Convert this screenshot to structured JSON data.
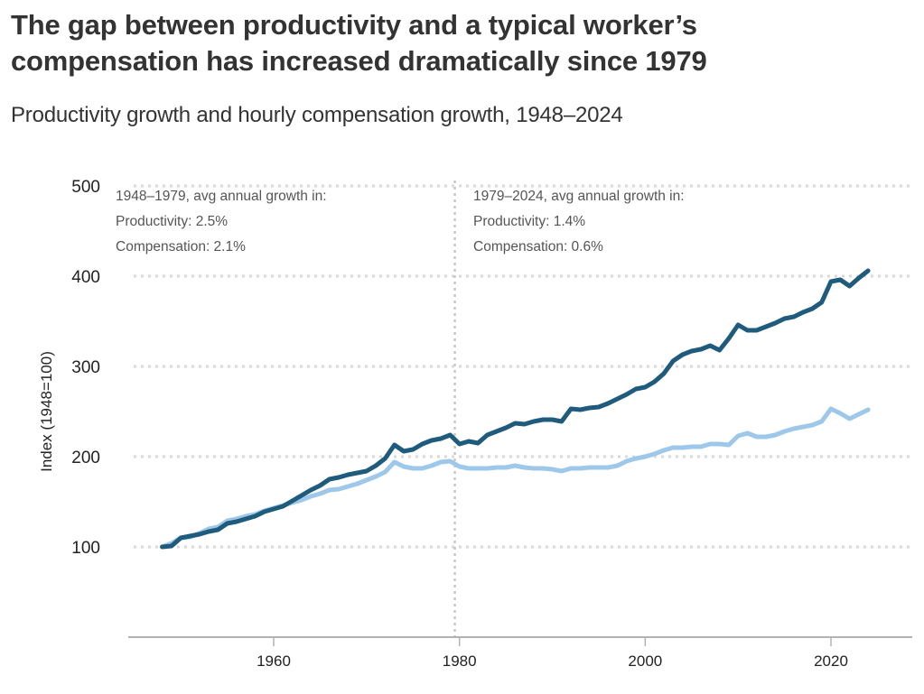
{
  "header": {
    "title_line1": "The gap between productivity and a typical worker’s",
    "title_line2": "compensation has increased dramatically since 1979",
    "subtitle": "Productivity growth and hourly compensation growth, 1948–2024"
  },
  "colors": {
    "productivity": "#1f5b7c",
    "compensation": "#9dc8ea",
    "grid": "#d9d9d9",
    "axis": "#b3b3b3",
    "divider": "#c8c8c8"
  },
  "chart_data": {
    "type": "line",
    "title": "The gap between productivity and a typical worker’s compensation has increased dramatically since 1979",
    "subtitle": "Productivity growth and hourly compensation growth, 1948–2024",
    "xlabel": "",
    "ylabel": "Index (1948=100)",
    "xlim": [
      1944.5,
      2028.5
    ],
    "ylim": [
      0,
      500
    ],
    "x_ticks": [
      1960,
      1980,
      2000,
      2020
    ],
    "x_tick_labels": [
      "1960",
      "1980",
      "2000",
      "2020"
    ],
    "y_ticks": [
      100,
      200,
      300,
      400,
      500
    ],
    "y_tick_labels": [
      "100",
      "200",
      "300",
      "400",
      "500"
    ],
    "grid": "horizontal dotted",
    "legend": "none",
    "divider_year": 1979.5,
    "annotations": {
      "left": {
        "heading": "1948–1979, avg annual growth in:",
        "productivity": "Productivity: 2.5%",
        "compensation": "Compensation: 2.1%"
      },
      "right": {
        "heading": "1979–2024, avg annual growth in:",
        "productivity": "Productivity: 1.4%",
        "compensation": "Compensation: 0.6%"
      }
    },
    "series": [
      {
        "name": "Productivity",
        "x": [
          1948,
          1949,
          1950,
          1951,
          1952,
          1953,
          1954,
          1955,
          1956,
          1957,
          1958,
          1959,
          1960,
          1961,
          1962,
          1963,
          1964,
          1965,
          1966,
          1967,
          1968,
          1969,
          1970,
          1971,
          1972,
          1973,
          1974,
          1975,
          1976,
          1977,
          1978,
          1979,
          1980,
          1981,
          1982,
          1983,
          1984,
          1985,
          1986,
          1987,
          1988,
          1989,
          1990,
          1991,
          1992,
          1993,
          1994,
          1995,
          1996,
          1997,
          1998,
          1999,
          2000,
          2001,
          2002,
          2003,
          2004,
          2005,
          2006,
          2007,
          2008,
          2009,
          2010,
          2011,
          2012,
          2013,
          2014,
          2015,
          2016,
          2017,
          2018,
          2019,
          2020,
          2021,
          2022,
          2023,
          2024
        ],
        "values": [
          100,
          101,
          110,
          112,
          114,
          117,
          119,
          126,
          128,
          131,
          134,
          139,
          142,
          145,
          151,
          157,
          163,
          168,
          175,
          177,
          180,
          182,
          184,
          190,
          198,
          213,
          206,
          208,
          214,
          218,
          220,
          224,
          214,
          217,
          215,
          224,
          228,
          232,
          237,
          236,
          239,
          241,
          241,
          239,
          253,
          252,
          254,
          255,
          259,
          264,
          269,
          275,
          277,
          283,
          292,
          306,
          313,
          317,
          319,
          323,
          318,
          331,
          346,
          340,
          340,
          344,
          348,
          353,
          355,
          360,
          364,
          371,
          394,
          396,
          389,
          398,
          406
        ]
      },
      {
        "name": "Compensation",
        "x": [
          1948,
          1949,
          1950,
          1951,
          1952,
          1953,
          1954,
          1955,
          1956,
          1957,
          1958,
          1959,
          1960,
          1961,
          1962,
          1963,
          1964,
          1965,
          1966,
          1967,
          1968,
          1969,
          1970,
          1971,
          1972,
          1973,
          1974,
          1975,
          1976,
          1977,
          1978,
          1979,
          1980,
          1981,
          1982,
          1983,
          1984,
          1985,
          1986,
          1987,
          1988,
          1989,
          1990,
          1991,
          1992,
          1993,
          1994,
          1995,
          1996,
          1997,
          1998,
          1999,
          2000,
          2001,
          2002,
          2003,
          2004,
          2005,
          2006,
          2007,
          2008,
          2009,
          2010,
          2011,
          2012,
          2013,
          2014,
          2015,
          2016,
          2017,
          2018,
          2019,
          2020,
          2021,
          2022,
          2023,
          2024
        ],
        "values": [
          100,
          104,
          110,
          111,
          115,
          120,
          122,
          129,
          131,
          134,
          136,
          140,
          143,
          146,
          149,
          152,
          156,
          159,
          163,
          164,
          167,
          170,
          174,
          178,
          183,
          194,
          189,
          187,
          187,
          190,
          194,
          195,
          189,
          187,
          187,
          187,
          188,
          188,
          190,
          188,
          187,
          187,
          186,
          184,
          187,
          187,
          188,
          188,
          188,
          190,
          195,
          198,
          200,
          203,
          207,
          210,
          210,
          211,
          211,
          214,
          214,
          213,
          223,
          226,
          222,
          222,
          224,
          228,
          231,
          233,
          235,
          239,
          253,
          248,
          242,
          247,
          252
        ]
      }
    ]
  }
}
